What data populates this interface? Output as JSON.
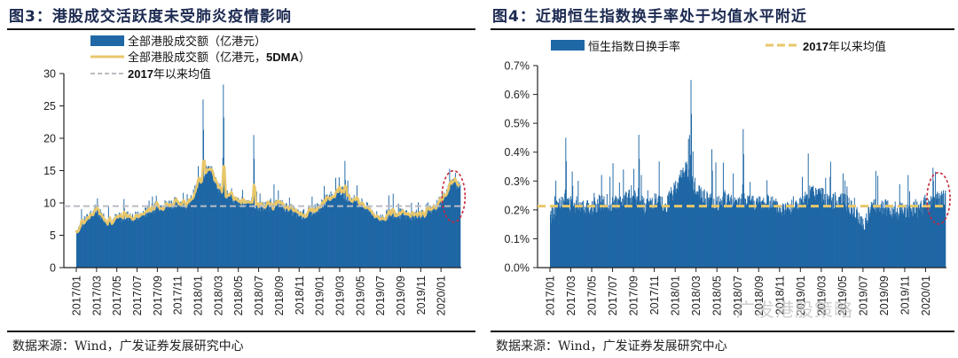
{
  "figures": [
    {
      "title": "图3：港股成交活跃度未受肺炎疫情影响",
      "source": "数据来源：Wind，广发证券发展研究中心"
    },
    {
      "title": "图4：近期恒生指数换手率处于均值水平附近",
      "source": "数据来源：Wind，广发证券发展研究中心"
    }
  ],
  "watermark": "广发港股策略",
  "colors": {
    "bar": "#1f67a5",
    "ma_line": "#e8c76a",
    "mean_gray": "#b9bcc2",
    "mean_yellow": "#e8c76a",
    "highlight_circle": "#c8283c",
    "title": "#1d2b52"
  },
  "chart_data": [
    {
      "type": "area",
      "title": "图3：港股成交活跃度未受肺炎疫情影响",
      "xlabel": "",
      "ylabel": "",
      "ylim": [
        0,
        30
      ],
      "yticks": [
        "0",
        "5",
        "10",
        "15",
        "20",
        "25",
        "30"
      ],
      "ytick_values": [
        0,
        5,
        10,
        15,
        20,
        25,
        30
      ],
      "xticks": [
        "2017/01",
        "2017/03",
        "2017/05",
        "2017/07",
        "2017/09",
        "2017/11",
        "2018/01",
        "2018/03",
        "2018/05",
        "2018/07",
        "2018/09",
        "2018/11",
        "2019/01",
        "2019/03",
        "2019/05",
        "2019/07",
        "2019/09",
        "2019/11",
        "2020/01"
      ],
      "legend": [
        "全部港股成交额（亿港元）",
        "全部港股成交额（亿港元，5DMA）",
        "2017年以来均值"
      ],
      "legend_position": "top-left",
      "grid": false,
      "mean_value": 9.5,
      "highlight": "2020/01–2020/02 (red dashed ellipse)",
      "series": [
        {
          "name": "全部港股成交额（亿港元）",
          "kind": "bar",
          "approx_monthly": {
            "x": [
              "2017/01",
              "2017/02",
              "2017/03",
              "2017/04",
              "2017/05",
              "2017/06",
              "2017/07",
              "2017/08",
              "2017/09",
              "2017/10",
              "2017/11",
              "2017/12",
              "2018/01",
              "2018/02",
              "2018/03",
              "2018/04",
              "2018/05",
              "2018/06",
              "2018/07",
              "2018/08",
              "2018/09",
              "2018/10",
              "2018/11",
              "2018/12",
              "2019/01",
              "2019/02",
              "2019/03",
              "2019/04",
              "2019/05",
              "2019/06",
              "2019/07",
              "2019/08",
              "2019/09",
              "2019/10",
              "2019/11",
              "2019/12",
              "2020/01",
              "2020/02"
            ],
            "values": [
              5.8,
              7.5,
              8.8,
              7.3,
              7.6,
              8.0,
              7.8,
              8.7,
              9.5,
              9.8,
              10.2,
              9.5,
              13.0,
              15.5,
              12.5,
              11.0,
              10.0,
              10.4,
              9.3,
              9.6,
              9.8,
              9.2,
              8.0,
              8.5,
              9.5,
              11.0,
              12.0,
              10.5,
              10.2,
              8.7,
              7.5,
              8.5,
              8.3,
              8.0,
              8.4,
              8.6,
              10.5,
              13.0
            ],
            "peaks": [
              {
                "x": "2018/01",
                "value": 26
              },
              {
                "x": "2018/03",
                "value": 28.3
              },
              {
                "x": "2018/06",
                "value": 20.5
              },
              {
                "x": "2019/03",
                "value": 16.5
              }
            ]
          }
        },
        {
          "name": "全部港股成交额（亿港元，5DMA）",
          "kind": "line",
          "approx_monthly": {
            "values": [
              5.7,
              7.2,
              8.5,
              7.2,
              7.4,
              7.8,
              7.6,
              8.6,
              9.3,
              9.7,
              10.0,
              9.3,
              12.8,
              18.0,
              12.0,
              10.8,
              10.0,
              10.2,
              9.2,
              9.5,
              9.6,
              9.0,
              6.5,
              8.2,
              9.3,
              10.8,
              11.8,
              10.3,
              10.0,
              8.5,
              7.0,
              8.3,
              8.0,
              7.8,
              8.2,
              8.4,
              10.2,
              12.6
            ]
          }
        },
        {
          "name": "2017年以来均值",
          "kind": "hline",
          "value": 9.5
        }
      ]
    },
    {
      "type": "area",
      "title": "图4：近期恒生指数换手率处于均值水平附近",
      "xlabel": "",
      "ylabel": "",
      "ylim": [
        0,
        0.7
      ],
      "yticks": [
        "0.0%",
        "0.1%",
        "0.2%",
        "0.3%",
        "0.4%",
        "0.5%",
        "0.6%",
        "0.7%"
      ],
      "ytick_values": [
        0,
        0.1,
        0.2,
        0.3,
        0.4,
        0.5,
        0.6,
        0.7
      ],
      "xticks": [
        "2017/01",
        "2017/03",
        "2017/05",
        "2017/07",
        "2017/09",
        "2017/11",
        "2018/01",
        "2018/03",
        "2018/05",
        "2018/07",
        "2018/09",
        "2018/11",
        "2019/01",
        "2019/03",
        "2019/05",
        "2019/07",
        "2019/09",
        "2019/11",
        "2020/01"
      ],
      "legend": [
        "恒生指数日换手率",
        "2017年以来均值"
      ],
      "legend_position": "top",
      "grid": false,
      "mean_value": 0.213,
      "highlight": "2020/01–2020/02 (red dashed ellipse)",
      "series": [
        {
          "name": "恒生指数日换手率",
          "kind": "bar",
          "unit": "%",
          "approx_monthly": {
            "x": [
              "2017/01",
              "2017/02",
              "2017/03",
              "2017/04",
              "2017/05",
              "2017/06",
              "2017/07",
              "2017/08",
              "2017/09",
              "2017/10",
              "2017/11",
              "2017/12",
              "2018/01",
              "2018/02",
              "2018/03",
              "2018/04",
              "2018/05",
              "2018/06",
              "2018/07",
              "2018/08",
              "2018/09",
              "2018/10",
              "2018/11",
              "2018/12",
              "2019/01",
              "2019/02",
              "2019/03",
              "2019/04",
              "2019/05",
              "2019/06",
              "2019/07",
              "2019/08",
              "2019/09",
              "2019/10",
              "2019/11",
              "2019/12",
              "2020/01",
              "2020/02"
            ],
            "values": [
              0.17,
              0.24,
              0.22,
              0.22,
              0.21,
              0.23,
              0.22,
              0.23,
              0.25,
              0.21,
              0.23,
              0.21,
              0.28,
              0.35,
              0.26,
              0.24,
              0.22,
              0.24,
              0.23,
              0.24,
              0.22,
              0.23,
              0.2,
              0.21,
              0.22,
              0.26,
              0.25,
              0.23,
              0.24,
              0.2,
              0.15,
              0.22,
              0.21,
              0.19,
              0.2,
              0.2,
              0.21,
              0.24
            ],
            "peaks": [
              {
                "x": "2017/02",
                "value": 0.45
              },
              {
                "x": "2017/09",
                "value": 0.46
              },
              {
                "x": "2018/02",
                "value": 0.65
              },
              {
                "x": "2018/04",
                "value": 0.41
              },
              {
                "x": "2018/07",
                "value": 0.48
              }
            ]
          }
        },
        {
          "name": "2017年以来均值",
          "kind": "hline",
          "value": 0.213
        }
      ]
    }
  ]
}
